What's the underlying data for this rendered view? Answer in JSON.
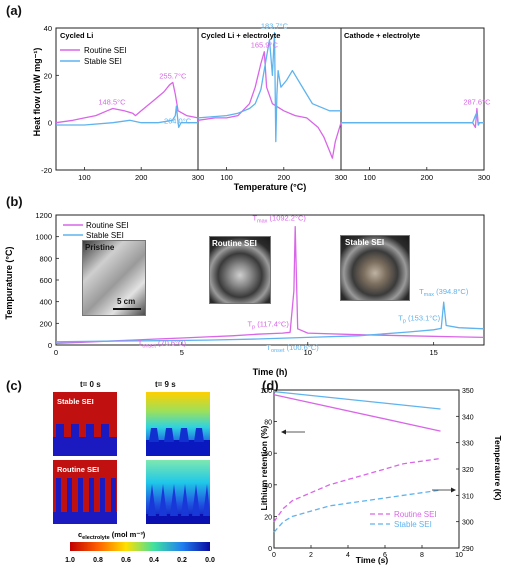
{
  "panels": {
    "a": "(a)",
    "b": "(b)",
    "c": "(c)",
    "d": "(d)"
  },
  "colors": {
    "routine": "#d966e8",
    "stable": "#5fb3ee"
  },
  "chart_data": [
    {
      "id": "a",
      "type": "line",
      "ylabel": "Heat flow (mW mg⁻¹)",
      "xlabel": "Temperature (°C)",
      "ylim": [
        -20,
        40
      ],
      "yticks": [
        -20,
        0,
        20,
        40
      ],
      "subplots": [
        {
          "title": "Cycled Li",
          "xlim": [
            50,
            300
          ],
          "xticks": [
            100,
            200,
            300
          ],
          "legend": [
            "Routine SEI",
            "Stable SEI"
          ],
          "series": [
            {
              "name": "Routine SEI",
              "color": "#d966e8",
              "x": [
                50,
                80,
                100,
                120,
                140,
                150,
                170,
                185,
                190,
                200,
                220,
                240,
                250,
                255.7,
                260,
                265,
                280,
                300
              ],
              "y": [
                0,
                1,
                2,
                3,
                5,
                6,
                5,
                4,
                3,
                5,
                9,
                13,
                16,
                17,
                12,
                5,
                3,
                2
              ]
            },
            {
              "name": "Stable SEI",
              "color": "#5fb3ee",
              "x": [
                50,
                100,
                150,
                180,
                200,
                230,
                255,
                260,
                262,
                264,
                266,
                270,
                280,
                300
              ],
              "y": [
                -1,
                -1,
                0,
                1,
                0,
                0,
                1,
                3,
                7,
                2,
                -2,
                0,
                0,
                0
              ]
            }
          ],
          "annotations": [
            {
              "text": "148.5°C",
              "x": 148.5,
              "y": 6,
              "color": "#d966e8"
            },
            {
              "text": "255.7°C",
              "x": 255.7,
              "y": 17,
              "color": "#d966e8"
            },
            {
              "text": "264.0°C",
              "x": 264.0,
              "y": -2,
              "color": "#5fb3ee"
            }
          ]
        },
        {
          "title": "Cycled Li + electrolyte",
          "xlim": [
            50,
            300
          ],
          "xticks": [
            100,
            200,
            300
          ],
          "series": [
            {
              "name": "Routine SEI",
              "color": "#d966e8",
              "x": [
                50,
                80,
                100,
                120,
                140,
                150,
                160,
                165.9,
                170,
                180,
                200,
                220,
                240,
                260,
                270,
                280,
                285,
                290,
                300
              ],
              "y": [
                1,
                2,
                2,
                3,
                8,
                15,
                25,
                30,
                15,
                8,
                5,
                3,
                2,
                -2,
                -6,
                -12,
                -15,
                -8,
                0
              ]
            },
            {
              "name": "Stable SEI",
              "color": "#5fb3ee",
              "x": [
                50,
                100,
                120,
                140,
                150,
                160,
                170,
                175,
                180,
                183.7,
                186,
                188,
                190,
                195,
                205,
                215,
                225,
                235,
                250,
                280,
                300
              ],
              "y": [
                2,
                3,
                4,
                6,
                8,
                14,
                28,
                35,
                20,
                38,
                -8,
                12,
                22,
                15,
                18,
                22,
                18,
                14,
                8,
                5,
                5
              ]
            }
          ],
          "annotations": [
            {
              "text": "165.9°C",
              "x": 165.9,
              "y": 30,
              "color": "#d966e8"
            },
            {
              "text": "183.7°C",
              "x": 183.7,
              "y": 38,
              "color": "#5fb3ee"
            }
          ]
        },
        {
          "title": "Cathode + electrolyte",
          "xlim": [
            50,
            300
          ],
          "xticks": [
            100,
            200,
            300
          ],
          "series": [
            {
              "name": "Routine SEI",
              "color": "#d966e8",
              "x": [
                50,
                100,
                200,
                260,
                280,
                285,
                287.6,
                290,
                292,
                300
              ],
              "y": [
                0,
                0,
                0,
                0,
                0,
                -2,
                6,
                -1,
                0,
                0
              ]
            },
            {
              "name": "Stable SEI",
              "color": "#5fb3ee",
              "x": [
                50,
                100,
                200,
                260,
                280,
                285,
                287,
                290,
                292,
                300
              ],
              "y": [
                0,
                0,
                0,
                0,
                0,
                3,
                4,
                -1,
                0,
                0
              ]
            }
          ],
          "annotations": [
            {
              "text": "287.6°C",
              "x": 287.6,
              "y": 6,
              "color": "#d966e8"
            }
          ]
        }
      ]
    },
    {
      "id": "b",
      "type": "line",
      "xlabel": "Time (h)",
      "ylabel": "Tempurature (°C)",
      "xlim": [
        0,
        17
      ],
      "ylim": [
        0,
        1200
      ],
      "xticks": [
        0,
        5,
        10,
        15
      ],
      "yticks": [
        0,
        200,
        400,
        600,
        800,
        1000,
        1200
      ],
      "legend": [
        "Routine SEI",
        "Stable SEI"
      ],
      "series": [
        {
          "name": "Routine SEI",
          "color": "#d966e8",
          "x": [
            0,
            1,
            2,
            3,
            4,
            5,
            6,
            7,
            8,
            9,
            9.3,
            9.45,
            9.5,
            9.6,
            10,
            12,
            14,
            16,
            17
          ],
          "y": [
            15,
            25,
            35,
            45,
            55,
            65,
            75,
            85,
            100,
            110,
            117.4,
            500,
            1092.2,
            150,
            110,
            95,
            85,
            75,
            70
          ]
        },
        {
          "name": "Stable SEI",
          "color": "#5fb3ee",
          "x": [
            0,
            2,
            4,
            6,
            8,
            10,
            12,
            14,
            15,
            15.3,
            15.4,
            15.5,
            16,
            17
          ],
          "y": [
            30,
            35,
            40,
            45,
            55,
            70,
            85,
            120,
            140,
            153.1,
            394.8,
            180,
            160,
            150
          ]
        }
      ],
      "annotations": [
        {
          "text": "T",
          "sub": "max",
          "tail": " (1092.2°C)",
          "x": 9.5,
          "y": 1092.2,
          "color": "#d966e8"
        },
        {
          "text": "T",
          "sub": "max",
          "tail": " (394.8°C)",
          "x": 15.4,
          "y": 394.8,
          "color": "#5fb3ee"
        },
        {
          "text": "T",
          "sub": "onset",
          "tail": " (70.6°C)",
          "x": 5,
          "y": 70.6,
          "color": "#d966e8"
        },
        {
          "text": "T",
          "sub": "onset",
          "tail": " (100.6°C)",
          "x": 9,
          "y": 100.6,
          "color": "#5fb3ee"
        },
        {
          "text": "T",
          "sub": "p",
          "tail": " (117.4°C)",
          "x": 9.3,
          "y": 117.4,
          "color": "#d966e8"
        },
        {
          "text": "T",
          "sub": "p",
          "tail": " (153.1°C)",
          "x": 15.3,
          "y": 153.1,
          "color": "#5fb3ee"
        }
      ],
      "photo_labels": [
        "Pristine",
        "Routine SEI",
        "Stable SEI"
      ],
      "scale_bar": "5 cm"
    },
    {
      "id": "d",
      "type": "line",
      "xlabel": "Time (s)",
      "ylabel": "Lithium retention (%)",
      "y2label": "Temperature (K)",
      "xlim": [
        0,
        10
      ],
      "ylim": [
        0,
        100
      ],
      "y2lim": [
        290,
        350
      ],
      "xticks": [
        0,
        2,
        4,
        6,
        8,
        10
      ],
      "yticks": [
        0,
        20,
        40,
        60,
        80,
        100
      ],
      "y2ticks": [
        290,
        300,
        310,
        320,
        330,
        340,
        350
      ],
      "legend": [
        "Routine SEI",
        "Stable SEI"
      ],
      "series": [
        {
          "name": "Routine SEI",
          "axis": "left",
          "color": "#d966e8",
          "x": [
            0,
            9
          ],
          "y": [
            97,
            74
          ]
        },
        {
          "name": "Stable SEI",
          "axis": "left",
          "color": "#5fb3ee",
          "x": [
            0,
            9
          ],
          "y": [
            99,
            88
          ]
        },
        {
          "name": "Routine SEI",
          "axis": "right",
          "dashed": true,
          "color": "#d966e8",
          "x": [
            0,
            0.5,
            1,
            2,
            3,
            4,
            5,
            6,
            7,
            8,
            9
          ],
          "y": [
            300,
            305,
            308,
            311,
            314,
            316,
            318,
            320,
            322,
            323,
            324
          ]
        },
        {
          "name": "Stable SEI",
          "axis": "right",
          "dashed": true,
          "color": "#5fb3ee",
          "x": [
            0,
            0.5,
            1,
            2,
            3,
            4,
            5,
            6,
            7,
            8,
            9
          ],
          "y": [
            296,
            300,
            302,
            304,
            306,
            307,
            308,
            309,
            310,
            311,
            312
          ]
        }
      ]
    }
  ],
  "panel_c": {
    "time_labels": [
      "t= 0 s",
      "t= 9 s"
    ],
    "row_labels": [
      "Stable SEI",
      "Routine SEI"
    ],
    "colorbar_title": "c",
    "colorbar_sub": "electrolyte",
    "colorbar_unit": " (mol m⁻³)",
    "colorbar_ticks": [
      "1.0",
      "0.8",
      "0.6",
      "0.4",
      "0.2",
      "0.0"
    ]
  }
}
